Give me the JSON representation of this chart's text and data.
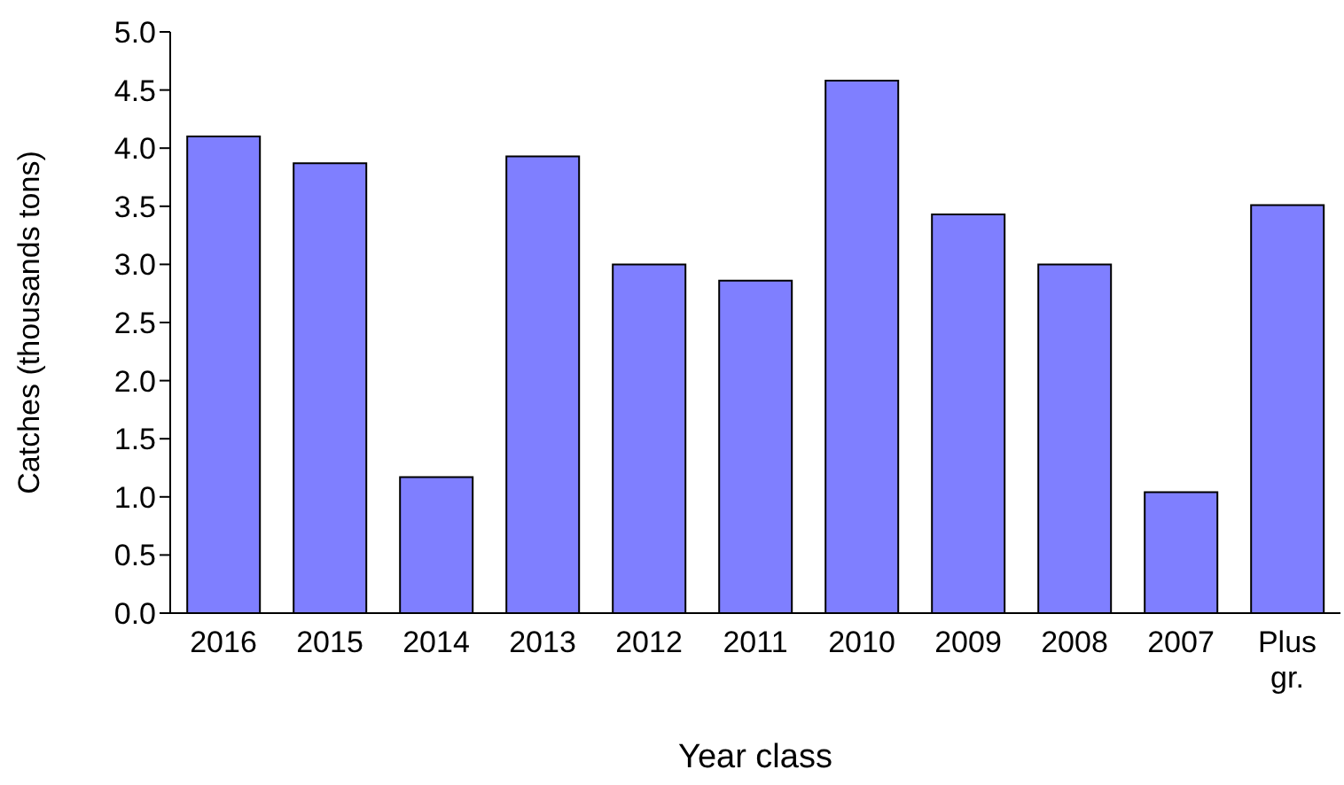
{
  "chart_data": {
    "type": "bar",
    "xlabel": "Year class",
    "ylabel": "Catches (thousands tons)",
    "categories": [
      "2016",
      "2015",
      "2014",
      "2013",
      "2012",
      "2011",
      "2010",
      "2009",
      "2008",
      "2007",
      "Plus gr."
    ],
    "values": [
      4.1,
      3.87,
      1.17,
      3.93,
      3.0,
      2.86,
      4.58,
      3.43,
      3.0,
      1.04,
      3.51
    ],
    "color": "#7f7fff",
    "ylim": [
      0,
      5
    ],
    "yticks": [
      {
        "value": 0,
        "label": "0.0"
      },
      {
        "value": 0.5,
        "label": "0.5"
      },
      {
        "value": 1,
        "label": "1.0"
      },
      {
        "value": 1.5,
        "label": "1.5"
      },
      {
        "value": 2,
        "label": "2.0"
      },
      {
        "value": 2.5,
        "label": "2.5"
      },
      {
        "value": 3,
        "label": "3.0"
      },
      {
        "value": 3.5,
        "label": "3.5"
      },
      {
        "value": 4,
        "label": "4.0"
      },
      {
        "value": 4.5,
        "label": "4.5"
      },
      {
        "value": 5,
        "label": "5.0"
      }
    ],
    "grid": false,
    "legend": false
  }
}
